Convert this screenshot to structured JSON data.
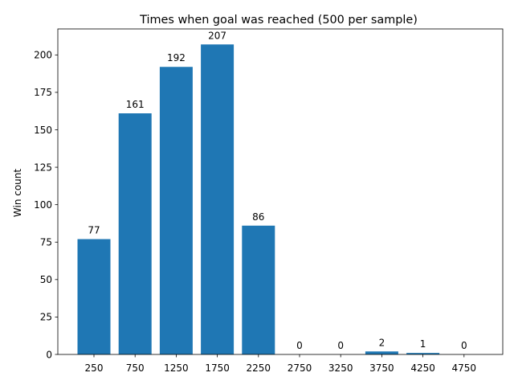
{
  "chart_data": {
    "type": "bar",
    "title": "Times when goal was reached (500 per sample)",
    "xlabel": "",
    "ylabel": "Win count",
    "categories": [
      "250",
      "750",
      "1250",
      "1750",
      "2250",
      "2750",
      "3250",
      "3750",
      "4250",
      "4750"
    ],
    "values": [
      77,
      161,
      192,
      207,
      86,
      0,
      0,
      2,
      1,
      0
    ],
    "data_labels": [
      "77",
      "161",
      "192",
      "207",
      "86",
      "0",
      "0",
      "2",
      "1",
      "0"
    ],
    "ylim": [
      0,
      217.35
    ],
    "yticks": [
      "0",
      "25",
      "50",
      "75",
      "100",
      "125",
      "150",
      "175",
      "200"
    ],
    "grid": false,
    "bar_color": "#1f77b4"
  }
}
